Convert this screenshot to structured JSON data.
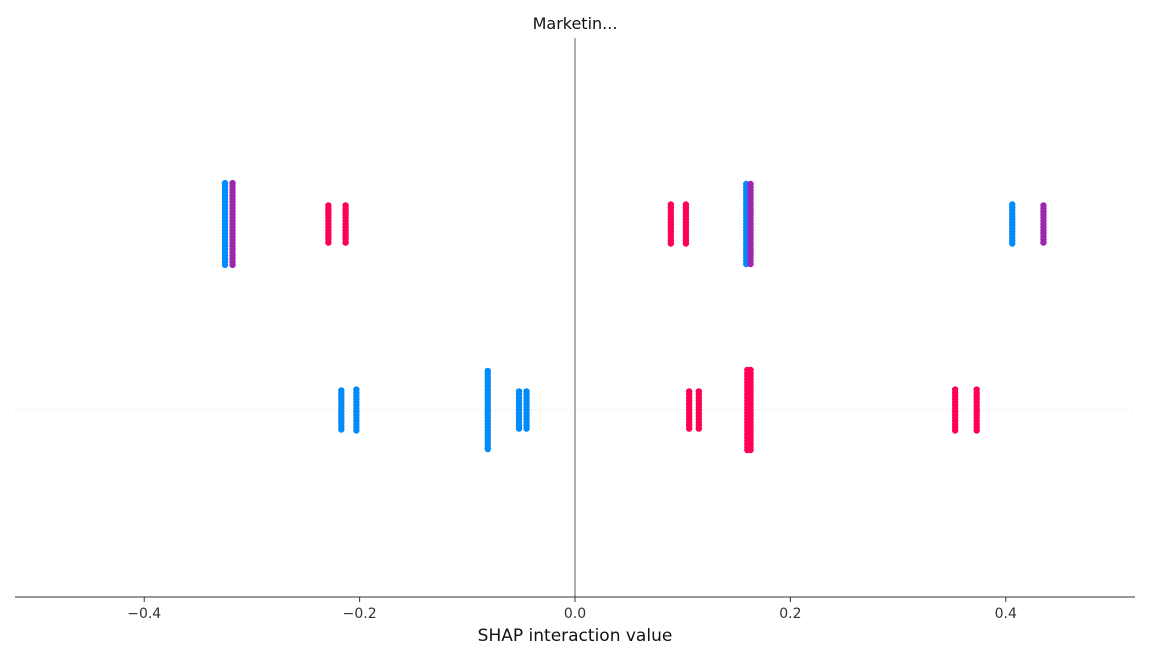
{
  "chart_data": {
    "type": "scatter",
    "title": "Marketin...",
    "xlabel": "SHAP interaction value",
    "xlim": [
      -0.52,
      0.52
    ],
    "xticks": [
      {
        "value": -0.4,
        "label": "−0.4"
      },
      {
        "value": -0.2,
        "label": "−0.2"
      },
      {
        "value": 0.0,
        "label": "0.0"
      },
      {
        "value": 0.2,
        "label": "0.2"
      },
      {
        "value": 0.4,
        "label": "0.4"
      }
    ],
    "grid": false,
    "colors": {
      "low": "#008bfb",
      "high": "#ff0052",
      "mid": "#9c27b0",
      "zero_line": "#999999",
      "row_line": "#dddddd",
      "axis": "#333333"
    },
    "rows": [
      {
        "clusters": [
          {
            "x": -0.325,
            "color": "low",
            "spread": 0.44
          },
          {
            "x": -0.318,
            "color": "mid",
            "spread": 0.44
          },
          {
            "x": -0.229,
            "color": "high",
            "spread": 0.2
          },
          {
            "x": -0.213,
            "color": "high",
            "spread": 0.2
          },
          {
            "x": 0.089,
            "color": "high",
            "spread": 0.21
          },
          {
            "x": 0.103,
            "color": "high",
            "spread": 0.21
          },
          {
            "x": 0.159,
            "color": "low",
            "spread": 0.43
          },
          {
            "x": 0.163,
            "color": "mid",
            "spread": 0.43
          },
          {
            "x": 0.406,
            "color": "low",
            "spread": 0.21
          },
          {
            "x": 0.435,
            "color": "mid",
            "spread": 0.2
          }
        ]
      },
      {
        "clusters": [
          {
            "x": -0.217,
            "color": "low",
            "spread": 0.21
          },
          {
            "x": -0.203,
            "color": "low",
            "spread": 0.22
          },
          {
            "x": -0.081,
            "color": "low",
            "spread": 0.42
          },
          {
            "x": -0.052,
            "color": "low",
            "spread": 0.2
          },
          {
            "x": -0.045,
            "color": "low",
            "spread": 0.2
          },
          {
            "x": 0.106,
            "color": "high",
            "spread": 0.2
          },
          {
            "x": 0.115,
            "color": "high",
            "spread": 0.2
          },
          {
            "x": 0.16,
            "color": "high",
            "spread": 0.43
          },
          {
            "x": 0.163,
            "color": "high",
            "spread": 0.43
          },
          {
            "x": 0.353,
            "color": "high",
            "spread": 0.22
          },
          {
            "x": 0.373,
            "color": "high",
            "spread": 0.22
          }
        ]
      }
    ]
  }
}
